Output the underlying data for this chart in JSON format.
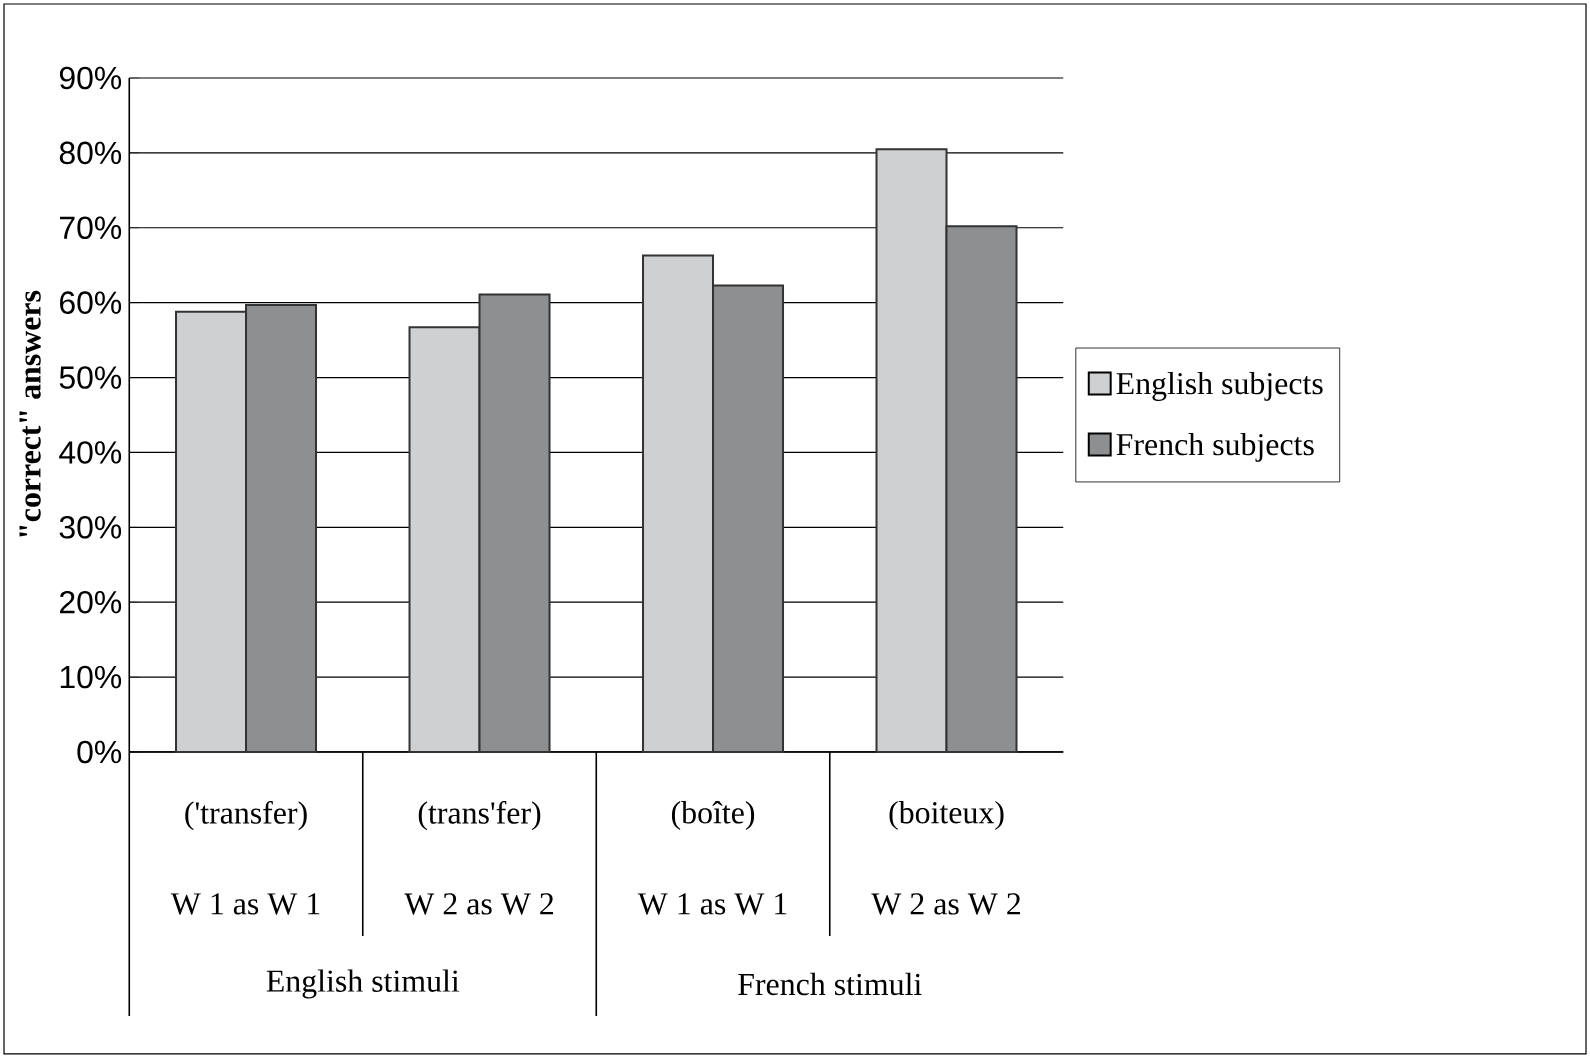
{
  "chart_data": {
    "type": "bar",
    "ylabel": "\"correct\" answers",
    "categories": [
      "('transfer)",
      "(trans'fer)",
      "(boîte)",
      "(boiteux)"
    ],
    "annotations": [
      "W 1 as W 1",
      "W 2 as W 2",
      "W 1 as W 1",
      "W 2 as W 2",
      "English stimuli",
      "French stimuli"
    ],
    "series": [
      {
        "name": "English subjects",
        "color": "#cfd0d2",
        "values": [
          58.8,
          56.7,
          66.3,
          80.5
        ]
      },
      {
        "name": "French subjects",
        "color": "#8e8f91",
        "values": [
          59.7,
          61.1,
          62.3,
          70.2
        ]
      }
    ],
    "ylim": [
      0,
      90
    ],
    "yticks": [
      {
        "value": 0,
        "label": "0%"
      },
      {
        "value": 10,
        "label": "10%"
      },
      {
        "value": 20,
        "label": "20%"
      },
      {
        "value": 30,
        "label": "30%"
      },
      {
        "value": 40,
        "label": "40%"
      },
      {
        "value": 50,
        "label": "50%"
      },
      {
        "value": 60,
        "label": "60%"
      },
      {
        "value": 70,
        "label": "70%"
      },
      {
        "value": 80,
        "label": "80%"
      },
      {
        "value": 90,
        "label": "90%"
      }
    ],
    "grid": "y",
    "legend": "right"
  }
}
